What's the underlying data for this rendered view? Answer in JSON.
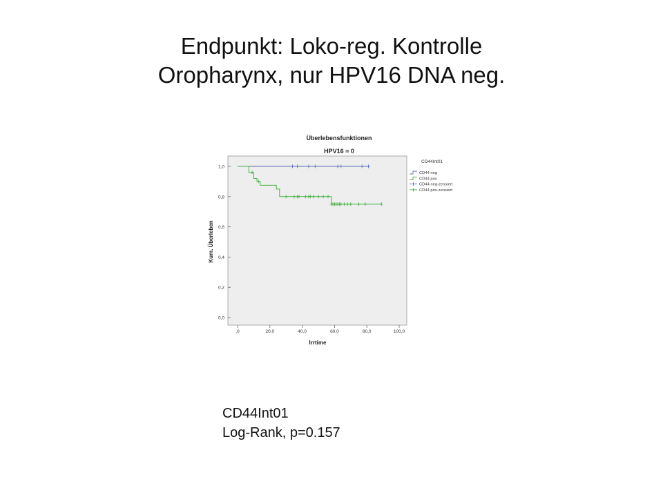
{
  "slide": {
    "title_line1": "Endpunkt: Loko-reg. Kontrolle",
    "title_line2": "Oropharynx, nur HPV16 DNA neg.",
    "caption_line1": "CD44Int01",
    "caption_line2": "Log-Rank, p=0.157"
  },
  "chart_data": {
    "type": "line",
    "title": "Überlebensfunktionen",
    "subtitle": "HPV16 = 0",
    "xlabel": "Irrtime",
    "ylabel": "Kum. Überleben",
    "xlim": [
      0,
      100
    ],
    "ylim": [
      0,
      1
    ],
    "x_ticks": [
      0,
      20,
      40,
      60,
      80,
      100
    ],
    "x_tick_labels": [
      ",0",
      "20,0",
      "40,0",
      "60,0",
      "80,0",
      "100,0"
    ],
    "y_ticks": [
      0,
      0.2,
      0.4,
      0.6,
      0.8,
      1.0
    ],
    "y_tick_labels": [
      "0,0",
      "0,2",
      "0,4",
      "0,6",
      "0,8",
      "1,0"
    ],
    "grid": false,
    "legend_title": "CD44Int01",
    "legend_position": "right",
    "plot_background": "#eeeeee",
    "series": [
      {
        "name": "CD44 neg",
        "censored_name": "CD44 neg-zensiert",
        "color": "#5b6fb8",
        "step_x": [
          0,
          81
        ],
        "step_y": [
          1.0,
          1.0
        ],
        "censored_x": [
          34,
          37,
          44,
          48,
          62,
          64,
          77,
          81
        ],
        "censored_y": [
          1.0,
          1.0,
          1.0,
          1.0,
          1.0,
          1.0,
          1.0,
          1.0
        ]
      },
      {
        "name": "CD44 pos",
        "censored_name": "CD44 pos-zensiert",
        "color": "#44b043",
        "step_x": [
          0,
          7,
          10,
          12,
          14,
          20,
          24,
          26,
          58,
          89
        ],
        "step_y": [
          1.0,
          0.96,
          0.92,
          0.9,
          0.875,
          0.875,
          0.85,
          0.8,
          0.75,
          0.75
        ],
        "censored_x": [
          9,
          13,
          30,
          35,
          37,
          38,
          42,
          44,
          45,
          47,
          50,
          53,
          56,
          58,
          59,
          60,
          61,
          62,
          63,
          64,
          66,
          68,
          70,
          75,
          79,
          89
        ],
        "censored_y": [
          0.96,
          0.9,
          0.8,
          0.8,
          0.8,
          0.8,
          0.8,
          0.8,
          0.8,
          0.8,
          0.8,
          0.8,
          0.8,
          0.75,
          0.75,
          0.75,
          0.75,
          0.75,
          0.75,
          0.75,
          0.75,
          0.75,
          0.75,
          0.75,
          0.75,
          0.75
        ]
      }
    ]
  }
}
